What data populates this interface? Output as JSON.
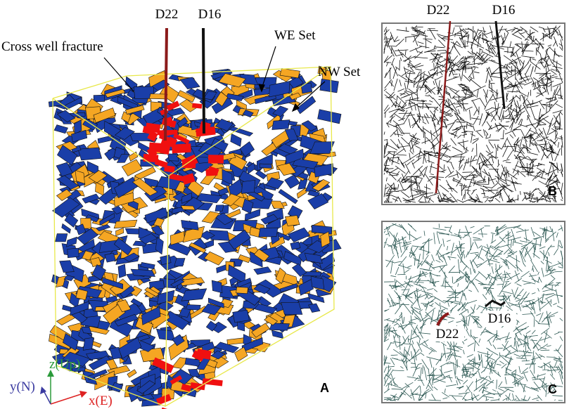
{
  "panel_a": {
    "label": "A",
    "wells": [
      "D22",
      "D16"
    ],
    "annotations": [
      "Cross well fracture",
      "WE Set",
      "NW Set"
    ],
    "axes": {
      "z": "z(Up)",
      "y": "y(N)",
      "x": "x(E)"
    }
  },
  "panel_b": {
    "label": "B",
    "wells": [
      "D22",
      "D16"
    ]
  },
  "panel_c": {
    "label": "C",
    "wells": [
      "D22",
      "D16"
    ]
  }
}
